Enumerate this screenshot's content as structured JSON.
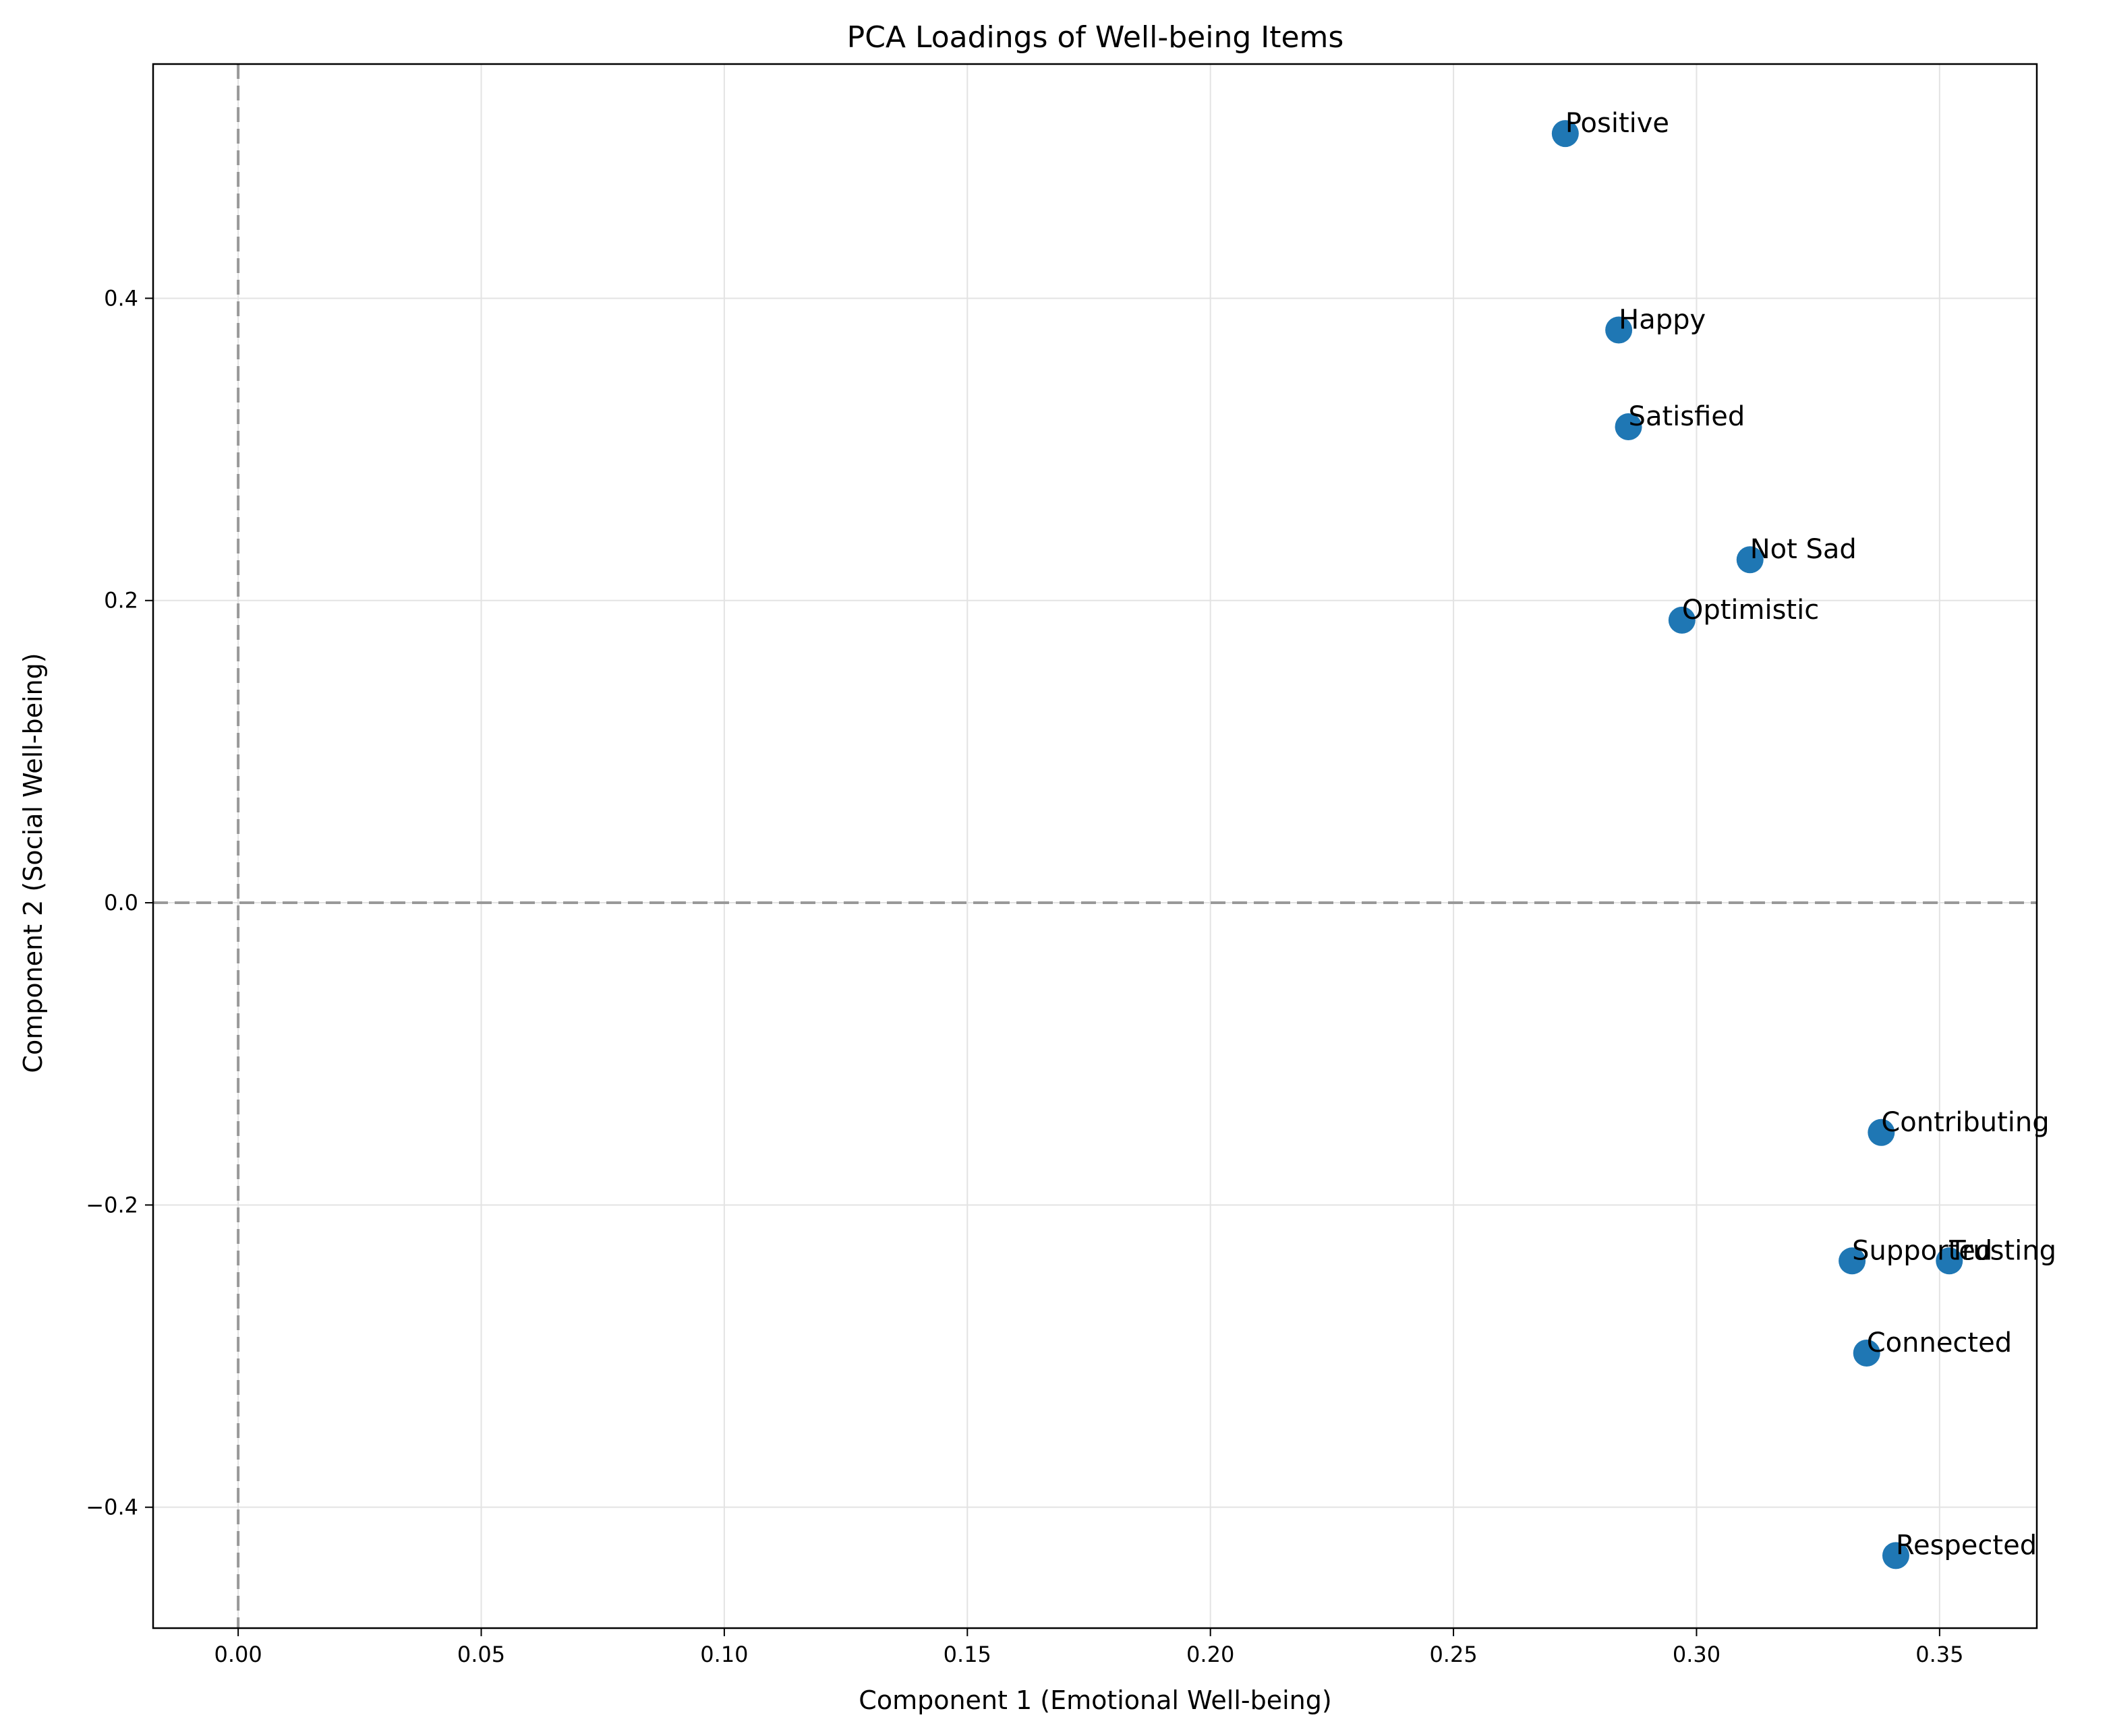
{
  "chart_data": {
    "type": "scatter",
    "title": "PCA Loadings of Well-being Items",
    "xlabel": "Component 1 (Emotional Well-being)",
    "ylabel": "Component 2 (Social Well-being)",
    "xlim": [
      -0.0175,
      0.37
    ],
    "ylim": [
      -0.48,
      0.555
    ],
    "xticks": [
      0.0,
      0.05,
      0.1,
      0.15,
      0.2,
      0.25,
      0.3,
      0.35
    ],
    "xtick_labels": [
      "0.00",
      "0.05",
      "0.10",
      "0.15",
      "0.20",
      "0.25",
      "0.30",
      "0.35"
    ],
    "yticks": [
      -0.4,
      -0.2,
      0.0,
      0.2,
      0.4
    ],
    "ytick_labels": [
      "−0.4",
      "−0.2",
      "0.0",
      "0.2",
      "0.4"
    ],
    "grid": true,
    "reference_lines": {
      "x": 0,
      "y": 0,
      "style": "dashed",
      "color": "#999999"
    },
    "point_color": "#1f77b4",
    "points": [
      {
        "label": "Positive",
        "x": 0.273,
        "y": 0.509
      },
      {
        "label": "Happy",
        "x": 0.284,
        "y": 0.379
      },
      {
        "label": "Satisfied",
        "x": 0.286,
        "y": 0.315
      },
      {
        "label": "Not Sad",
        "x": 0.311,
        "y": 0.227
      },
      {
        "label": "Optimistic",
        "x": 0.297,
        "y": 0.187
      },
      {
        "label": "Contributing",
        "x": 0.338,
        "y": -0.152
      },
      {
        "label": "Supported",
        "x": 0.332,
        "y": -0.237
      },
      {
        "label": "Trusting",
        "x": 0.352,
        "y": -0.237
      },
      {
        "label": "Connected",
        "x": 0.335,
        "y": -0.298
      },
      {
        "label": "Respected",
        "x": 0.341,
        "y": -0.432
      }
    ]
  }
}
